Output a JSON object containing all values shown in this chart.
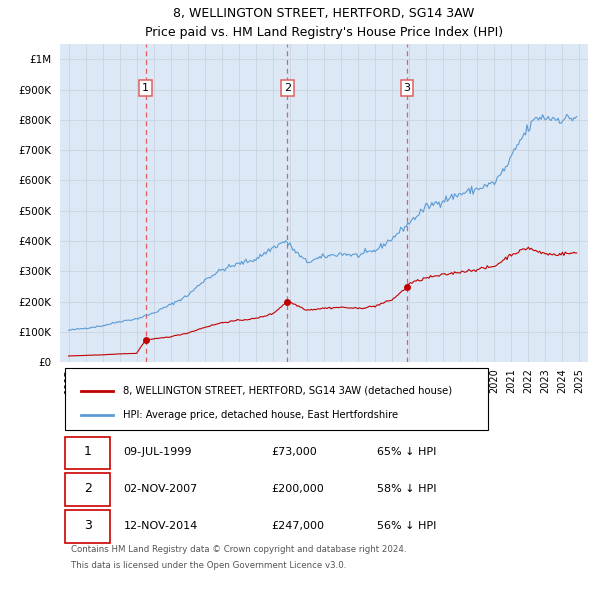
{
  "title": "8, WELLINGTON STREET, HERTFORD, SG14 3AW",
  "subtitle": "Price paid vs. HM Land Registry's House Price Index (HPI)",
  "hpi_label": "HPI: Average price, detached house, East Hertfordshire",
  "property_label": "8, WELLINGTON STREET, HERTFORD, SG14 3AW (detached house)",
  "transactions": [
    {
      "num": 1,
      "date": "09-JUL-1999",
      "price": 73000,
      "year": 1999.52,
      "hpi_pct": "65% ↓ HPI"
    },
    {
      "num": 2,
      "date": "02-NOV-2007",
      "price": 200000,
      "year": 2007.84,
      "hpi_pct": "58% ↓ HPI"
    },
    {
      "num": 3,
      "date": "12-NOV-2014",
      "price": 247000,
      "year": 2014.87,
      "hpi_pct": "56% ↓ HPI"
    }
  ],
  "footer1": "Contains HM Land Registry data © Crown copyright and database right 2024.",
  "footer2": "This data is licensed under the Open Government Licence v3.0.",
  "ylim": [
    0,
    1050000
  ],
  "yticks": [
    0,
    100000,
    200000,
    300000,
    400000,
    500000,
    600000,
    700000,
    800000,
    900000,
    1000000
  ],
  "xlim_start": 1994.5,
  "xlim_end": 2025.5,
  "hpi_color": "#5b9bd5",
  "property_color": "#c00000",
  "vline_color": "#e06060",
  "grid_color": "#c8d4e0",
  "chart_bg": "#dce8f5",
  "bg_color": "#ffffff"
}
